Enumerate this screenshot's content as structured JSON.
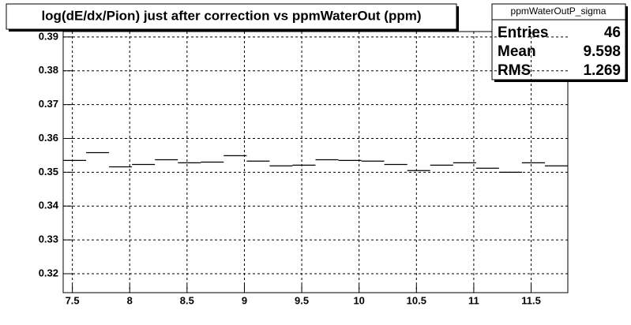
{
  "chart_data": {
    "type": "histogram",
    "title": "log(dE/dx/Pion) just after correction vs ppmWaterOut (ppm)",
    "bins": [
      7.42,
      7.62,
      7.82,
      8.02,
      8.22,
      8.42,
      8.62,
      8.82,
      9.02,
      9.22,
      9.42,
      9.62,
      9.82,
      10.02,
      10.22,
      10.42,
      10.62,
      10.82,
      11.02,
      11.22,
      11.42,
      11.62,
      11.82
    ],
    "values": [
      0.3535,
      0.3558,
      0.3516,
      0.3523,
      0.3537,
      0.3528,
      0.353,
      0.3549,
      0.3533,
      0.3519,
      0.3521,
      0.3537,
      0.3535,
      0.3533,
      0.3523,
      0.3505,
      0.3521,
      0.3528,
      0.3512,
      0.35,
      0.3528,
      0.3519
    ],
    "color": "#000000",
    "xlim": [
      7.42,
      11.82
    ],
    "ylim": [
      0.3144,
      0.3916
    ],
    "xticks": [
      7.5,
      8,
      8.5,
      9,
      9.5,
      10,
      10.5,
      11,
      11.5
    ],
    "yticks": [
      0.32,
      0.33,
      0.34,
      0.35,
      0.36,
      0.37,
      0.38,
      0.39
    ],
    "grid": true,
    "stats": {
      "title": "ppmWaterOutP_sigma",
      "rows": [
        {
          "label": "Entries",
          "value": 46
        },
        {
          "label": "Mean",
          "value": 9.598
        },
        {
          "label": "RMS",
          "value": 1.269
        }
      ]
    }
  }
}
